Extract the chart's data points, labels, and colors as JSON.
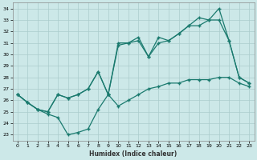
{
  "xlabel": "Humidex (Indice chaleur)",
  "bg_color": "#cce8e8",
  "grid_color": "#aacccc",
  "line_color": "#1a7a6e",
  "xlim": [
    -0.5,
    23.5
  ],
  "ylim": [
    22.5,
    34.5
  ],
  "xticks": [
    0,
    1,
    2,
    3,
    4,
    5,
    6,
    7,
    8,
    9,
    10,
    11,
    12,
    13,
    14,
    15,
    16,
    17,
    18,
    19,
    20,
    21,
    22,
    23
  ],
  "yticks": [
    23,
    24,
    25,
    26,
    27,
    28,
    29,
    30,
    31,
    32,
    33,
    34
  ],
  "line1_x": [
    0,
    1,
    2,
    3,
    4,
    5,
    6,
    7,
    8,
    9,
    10,
    11,
    12,
    13,
    14,
    15,
    16,
    17,
    18,
    19,
    20,
    21,
    22,
    23
  ],
  "line1_y": [
    26.5,
    25.8,
    25.2,
    25.0,
    26.5,
    26.2,
    26.5,
    27.0,
    28.5,
    26.5,
    31.0,
    31.0,
    31.5,
    29.8,
    31.5,
    31.2,
    31.8,
    32.5,
    33.2,
    33.0,
    34.0,
    31.2,
    28.0,
    27.5
  ],
  "line2_x": [
    0,
    1,
    2,
    3,
    4,
    5,
    6,
    7,
    8,
    9,
    10,
    11,
    12,
    13,
    14,
    15,
    16,
    17,
    18,
    19,
    20,
    21,
    22,
    23
  ],
  "line2_y": [
    26.5,
    25.8,
    25.2,
    25.0,
    26.5,
    26.2,
    26.5,
    27.0,
    28.5,
    26.5,
    30.8,
    31.0,
    31.2,
    29.8,
    31.0,
    31.2,
    31.8,
    32.5,
    32.5,
    33.0,
    33.0,
    31.2,
    28.0,
    27.5
  ],
  "line3_x": [
    0,
    1,
    2,
    3,
    4,
    5,
    6,
    7,
    8,
    9,
    10,
    11,
    12,
    13,
    14,
    15,
    16,
    17,
    18,
    19,
    20,
    21,
    22,
    23
  ],
  "line3_y": [
    26.5,
    25.8,
    25.2,
    24.8,
    24.5,
    23.0,
    23.2,
    23.5,
    25.2,
    26.5,
    25.5,
    26.0,
    26.5,
    27.0,
    27.2,
    27.5,
    27.5,
    27.8,
    27.8,
    27.8,
    28.0,
    28.0,
    27.5,
    27.2
  ]
}
